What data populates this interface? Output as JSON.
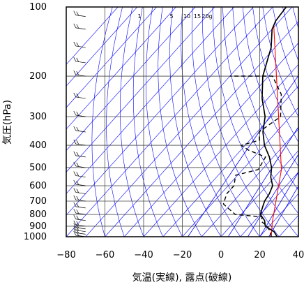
{
  "chart_data": {
    "type": "skew-t",
    "xlabel": "気温(実線), 露点(破線)",
    "ylabel": "気圧(hPa)",
    "xlim": [
      -80,
      40
    ],
    "ylim": [
      1000,
      100
    ],
    "y_scale": "log",
    "x_ticks": [
      -80,
      -60,
      -40,
      -20,
      0,
      20,
      40
    ],
    "y_ticks": [
      100,
      200,
      300,
      400,
      500,
      600,
      700,
      800,
      900,
      1000
    ],
    "mixing_ratio_labels": [
      "1",
      "5",
      "10",
      "15",
      "20g"
    ],
    "colors": {
      "temperature": "#000000",
      "dewpoint": "#000000",
      "reference": "#ff0000",
      "guide_lines": "#0000ff",
      "grid": "#444444",
      "wind_barbs": "#000000"
    },
    "series": [
      {
        "name": "気温",
        "style": "solid",
        "points": [
          [
            29,
            1000
          ],
          [
            25,
            950
          ],
          [
            18,
            900
          ],
          [
            15,
            850
          ],
          [
            10,
            800
          ],
          [
            8,
            750
          ],
          [
            6,
            700
          ],
          [
            5,
            650
          ],
          [
            3,
            600
          ],
          [
            -2,
            550
          ],
          [
            -6,
            500
          ],
          [
            -12,
            450
          ],
          [
            -20,
            400
          ],
          [
            -27,
            350
          ],
          [
            -33,
            300
          ],
          [
            -43,
            250
          ],
          [
            -53,
            200
          ],
          [
            -62,
            150
          ],
          [
            -70,
            125
          ],
          [
            -72,
            115
          ],
          [
            -73,
            100
          ]
        ]
      },
      {
        "name": "露点",
        "style": "dashed",
        "points": [
          [
            26,
            1000
          ],
          [
            23,
            950
          ],
          [
            19,
            900
          ],
          [
            14,
            860
          ],
          [
            12,
            820
          ],
          [
            -3,
            800
          ],
          [
            -14,
            720
          ],
          [
            -17,
            650
          ],
          [
            -17,
            600
          ],
          [
            -21,
            540
          ],
          [
            -12,
            510
          ],
          [
            -14,
            450
          ],
          [
            -26,
            420
          ],
          [
            -32,
            400
          ],
          [
            -25,
            380
          ],
          [
            -29,
            350
          ],
          [
            -25,
            300
          ],
          [
            -35,
            240
          ],
          [
            -48,
            200
          ],
          [
            -60,
            200
          ],
          [
            -70,
            200
          ]
        ]
      }
    ],
    "wind_barbs_pressures": [
      1000,
      975,
      950,
      925,
      900,
      850,
      800,
      750,
      700,
      650,
      600,
      550,
      500,
      450,
      400,
      350,
      300,
      250,
      200,
      175,
      150,
      125,
      110
    ]
  }
}
